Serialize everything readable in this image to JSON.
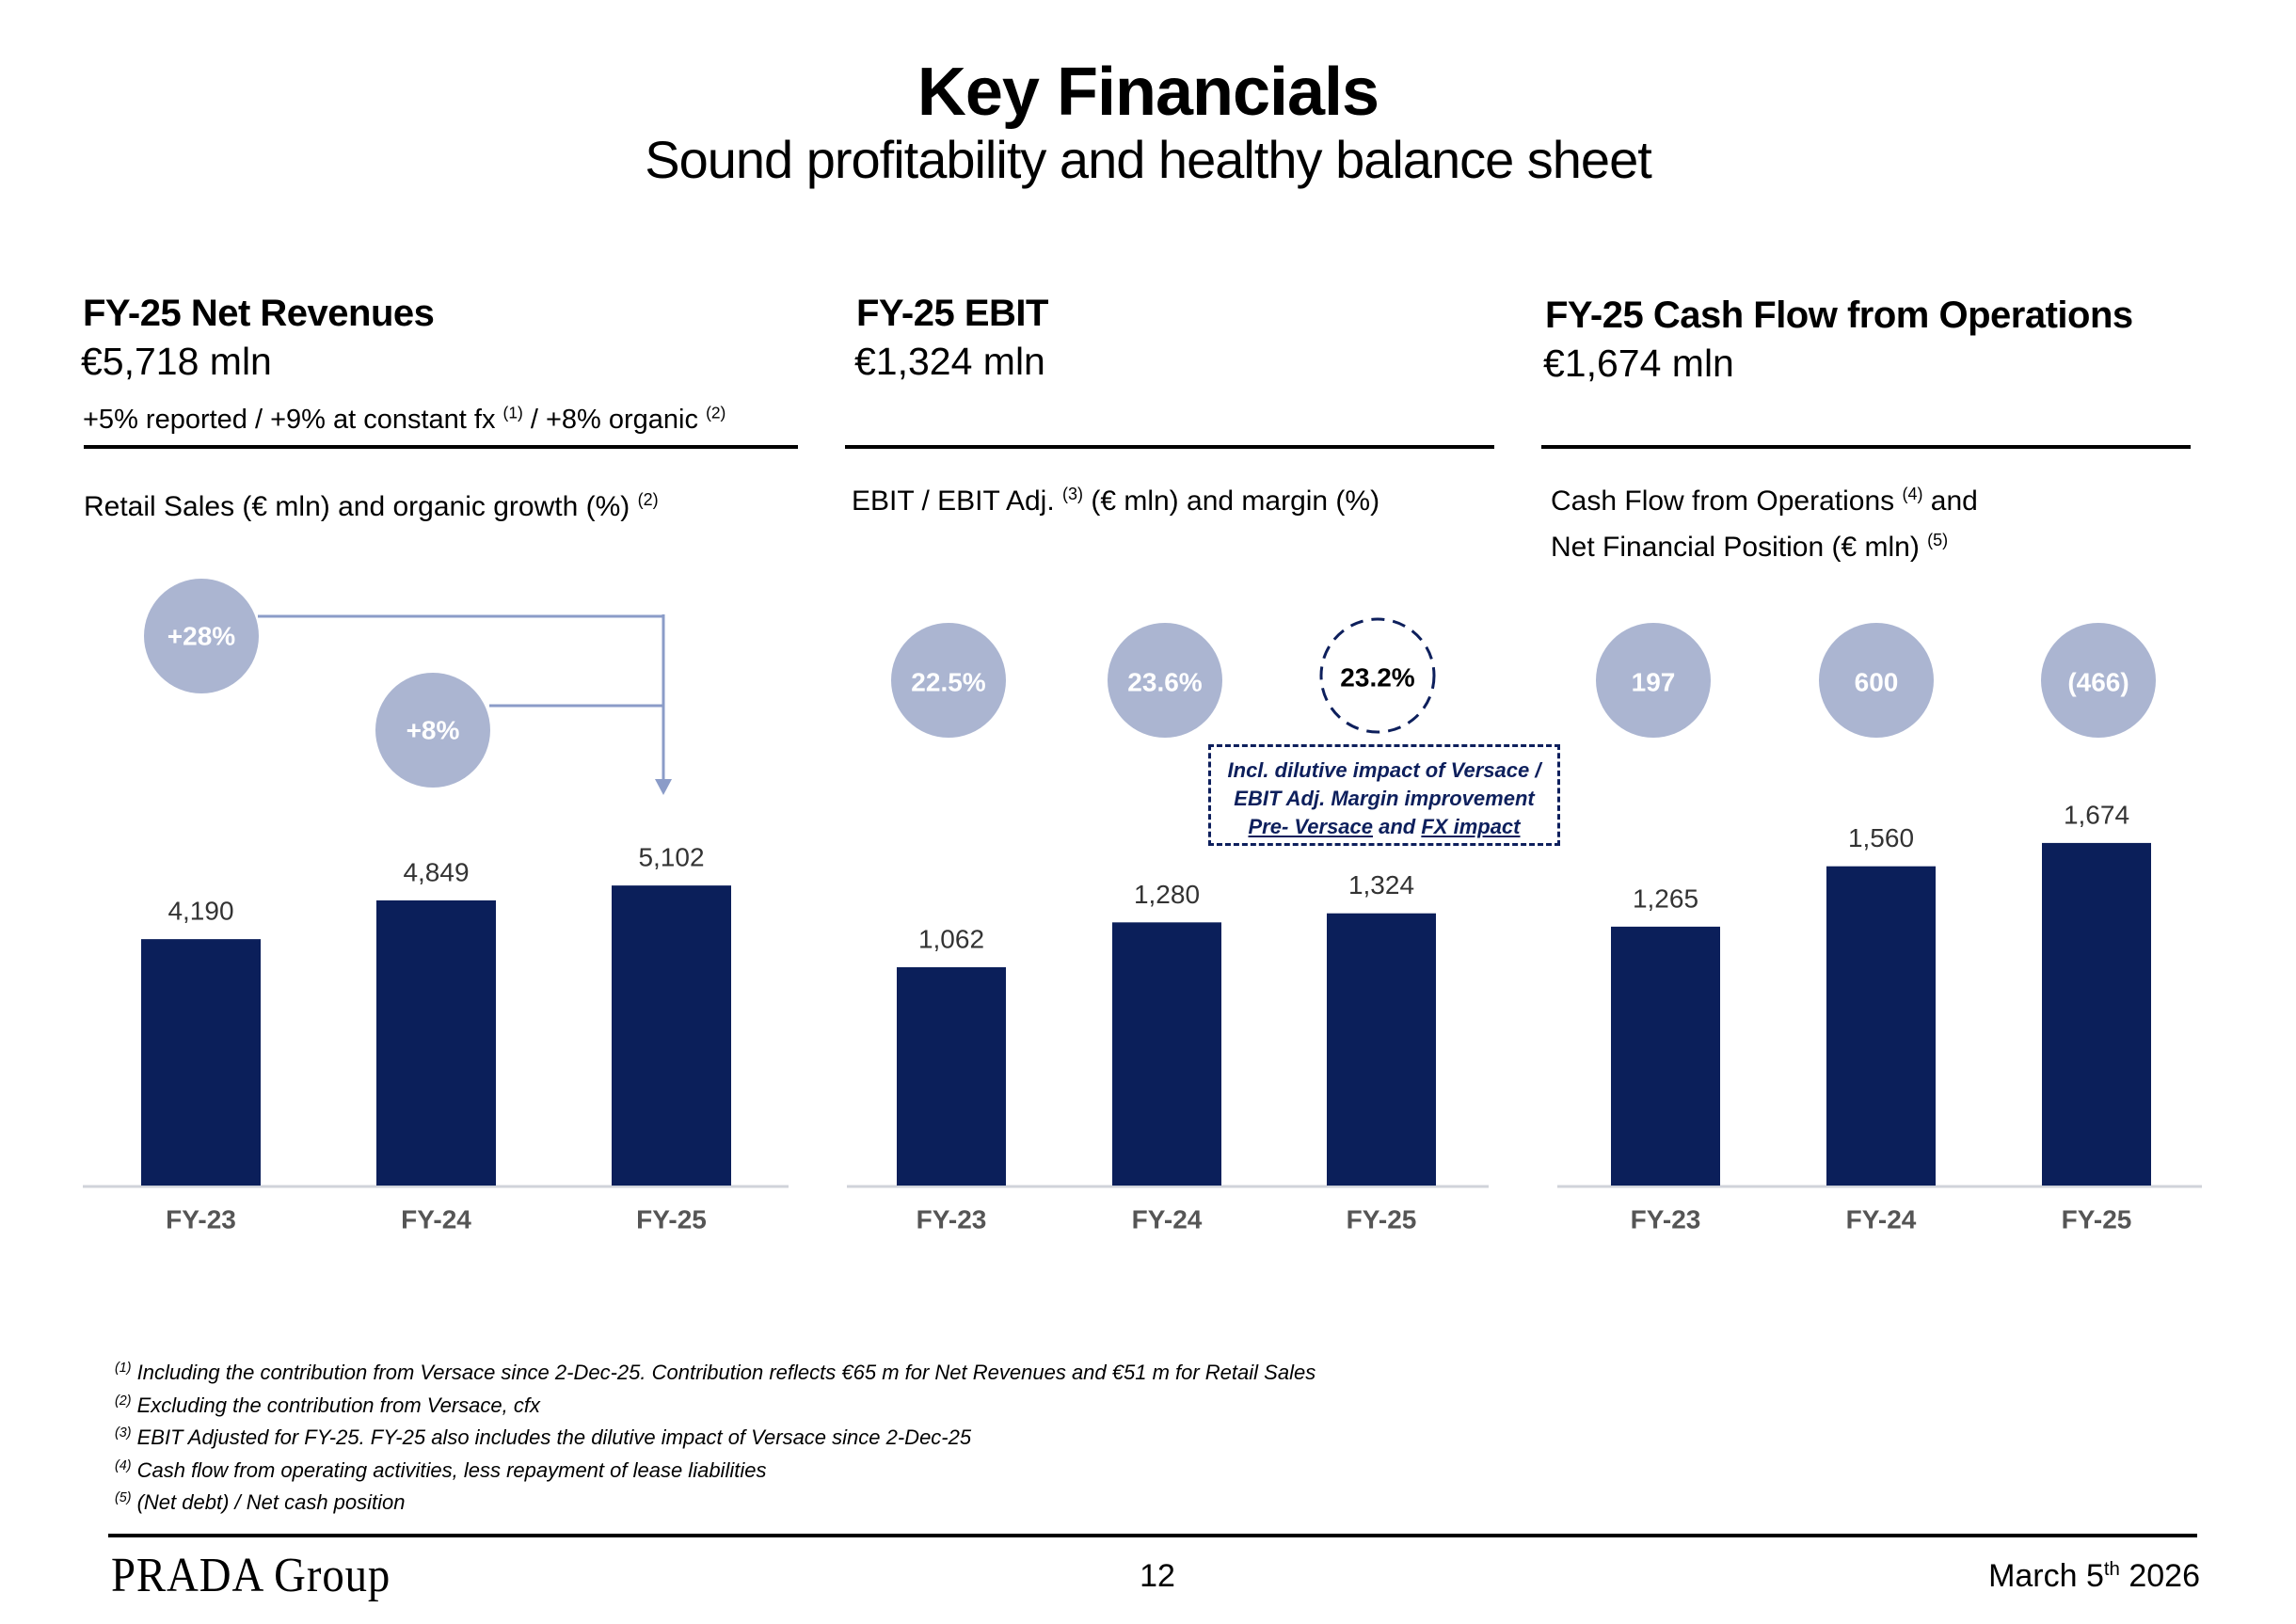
{
  "header": {
    "title": "Key Financials",
    "subtitle": "Sound profitability and healthy balance sheet"
  },
  "colors": {
    "bar": "#0b1f5a",
    "bubble": "#abb5d1",
    "connector": "#8b9cc8",
    "annotation": "#0d1f5c",
    "axis": "#d0d3da",
    "value_label": "#333333",
    "category_label": "#555555"
  },
  "sections": [
    {
      "title": "FY-25 Net Revenues",
      "value": "€5,718 mln",
      "growth": {
        "part1": "+5% reported  / +9% at constant fx ",
        "sup1": "(1)",
        "part2": " / +8% organic ",
        "sup2": "(2)"
      },
      "chart_subtitle": {
        "text": "Retail Sales (€ mln) and organic growth (%) ",
        "sup": "(2)"
      }
    },
    {
      "title": "FY-25 EBIT",
      "value": "€1,324 mln",
      "chart_subtitle": {
        "text1": "EBIT / EBIT Adj. ",
        "sup": "(3)",
        "text2": " (€ mln) and margin (%)"
      },
      "annotation": {
        "line1": "Incl. dilutive impact of Versace /",
        "line2": "EBIT Adj. Margin improvement",
        "line3_u1": "Pre- Versace",
        "line3_mid": " and ",
        "line3_u2": "FX impact"
      }
    },
    {
      "title": "FY-25 Cash Flow from Operations",
      "value": "€1,674 mln",
      "chart_subtitle": {
        "line1_text": "Cash Flow from Operations ",
        "line1_sup": "(4)",
        "line1_end": " and",
        "line2_text": "Net Financial Position (€ mln) ",
        "line2_sup": "(5)"
      }
    }
  ],
  "chart_data": [
    {
      "type": "bar",
      "title": "Retail Sales (€ mln) and organic growth (%)",
      "categories": [
        "FY-23",
        "FY-24",
        "FY-25"
      ],
      "values": [
        4190,
        4849,
        5102
      ],
      "value_labels": [
        "4,190",
        "4,849",
        "5,102"
      ],
      "bubbles": [
        {
          "label": "+28%",
          "from": "FY-23",
          "to": "FY-25"
        },
        {
          "label": "+8%",
          "from": "FY-24",
          "to": "FY-25"
        }
      ],
      "ylim": [
        0,
        5500
      ]
    },
    {
      "type": "bar",
      "title": "EBIT / EBIT Adj. (€ mln) and margin (%)",
      "categories": [
        "FY-23",
        "FY-24",
        "FY-25"
      ],
      "values": [
        1062,
        1280,
        1324
      ],
      "value_labels": [
        "1,062",
        "1,280",
        "1,324"
      ],
      "margins": [
        "22.5%",
        "23.6%",
        "23.2%"
      ],
      "highlighted_margin_index": 2,
      "ylim": [
        0,
        1400
      ]
    },
    {
      "type": "bar",
      "title": "Cash Flow from Operations and Net Financial Position (€ mln)",
      "categories": [
        "FY-23",
        "FY-24",
        "FY-25"
      ],
      "values": [
        1265,
        1560,
        1674
      ],
      "value_labels": [
        "1,265",
        "1,560",
        "1,674"
      ],
      "net_financial_position": [
        "197",
        "600",
        "(466)"
      ],
      "ylim": [
        0,
        1750
      ]
    }
  ],
  "footnotes": [
    {
      "sup": "(1)",
      "text": " Including the contribution from Versace since 2-Dec-25. Contribution reflects €65 m for Net Revenues and €51 m for Retail Sales"
    },
    {
      "sup": "(2)",
      "text": " Excluding the contribution from Versace, cfx"
    },
    {
      "sup": "(3)",
      "text": " EBIT Adjusted for FY-25. FY-25 also includes the dilutive impact of Versace since 2-Dec-25"
    },
    {
      "sup": "(4)",
      "text": " Cash flow from operating activities, less repayment of lease liabilities"
    },
    {
      "sup": "(5)",
      "text": " (Net debt) / Net cash position"
    }
  ],
  "footer": {
    "logo": "PRADA Group",
    "page_number": "12",
    "date_text": "March 5",
    "date_sup": "th",
    "date_year": " 2026"
  }
}
